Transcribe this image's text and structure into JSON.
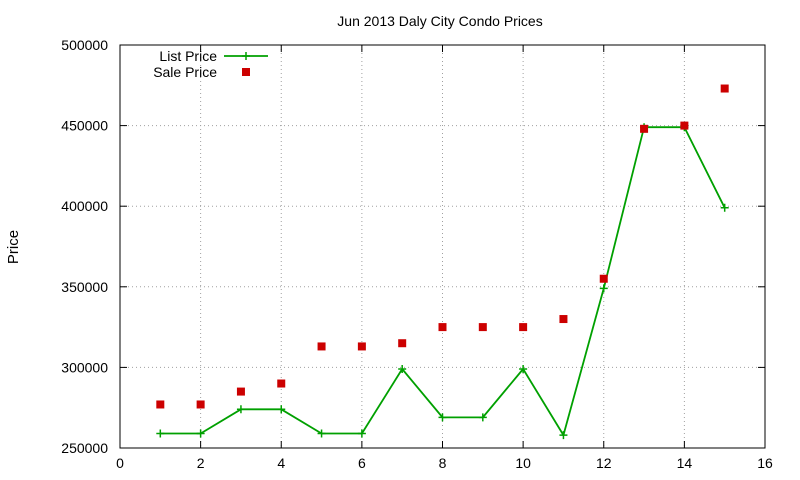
{
  "chart_data": {
    "type": "line",
    "title": "Jun 2013 Daly City Condo Prices",
    "xlabel": "",
    "ylabel": "Price",
    "xlim": [
      0,
      16
    ],
    "ylim": [
      250000,
      500000
    ],
    "xticks": [
      0,
      2,
      4,
      6,
      8,
      10,
      12,
      14,
      16
    ],
    "yticks": [
      250000,
      300000,
      350000,
      400000,
      450000,
      500000
    ],
    "grid": true,
    "legend_position": "top-left",
    "series": [
      {
        "name": "List Price",
        "style": "line-with-plus-markers",
        "color": "#00a000",
        "x": [
          1,
          2,
          3,
          4,
          5,
          6,
          7,
          8,
          9,
          10,
          11,
          12,
          13,
          14,
          15
        ],
        "y": [
          259000,
          259000,
          274000,
          274000,
          259000,
          259000,
          299000,
          269000,
          269000,
          299000,
          258000,
          349000,
          449000,
          449000,
          399000
        ]
      },
      {
        "name": "Sale Price",
        "style": "square-markers",
        "color": "#cc0000",
        "x": [
          1,
          2,
          3,
          4,
          5,
          6,
          7,
          8,
          9,
          10,
          11,
          12,
          13,
          14,
          15
        ],
        "y": [
          277000,
          277000,
          285000,
          290000,
          313000,
          313000,
          315000,
          325000,
          325000,
          325000,
          330000,
          355000,
          448000,
          450000,
          473000
        ]
      }
    ]
  }
}
